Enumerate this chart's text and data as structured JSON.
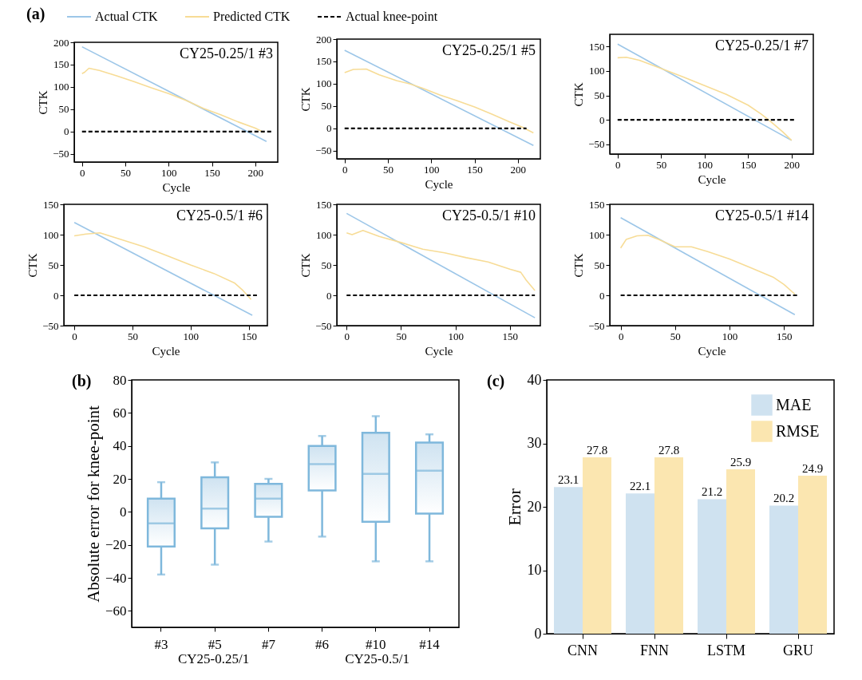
{
  "chart_data": [
    {
      "type": "line",
      "title": "CY25-0.25/1 #3",
      "xlabel": "Cycle",
      "ylabel": "CTK",
      "annotations": [
        "(a)"
      ],
      "legend": "top",
      "xlim": [
        -9,
        226
      ],
      "xticks": [
        0,
        50,
        100,
        150,
        200
      ],
      "ylim": [
        -68,
        200
      ],
      "yticks": [
        -50,
        0,
        50,
        100,
        150,
        200
      ],
      "series": [
        {
          "name": "Actual CTK",
          "color": "#9cc6e8",
          "x": [
            0,
            213
          ],
          "values": [
            190,
            -22
          ]
        },
        {
          "name": "Predicted CTK",
          "color": "#f7dc96",
          "x": [
            0,
            3,
            8,
            20,
            40,
            60,
            80,
            100,
            120,
            140,
            160,
            180,
            200,
            210
          ],
          "values": [
            130,
            133,
            142,
            137,
            125,
            112,
            98,
            85,
            70,
            52,
            38,
            22,
            8,
            -2
          ]
        },
        {
          "name": "Actual knee-point",
          "color": "#000000",
          "line_style": "dashed",
          "x": [
            0,
            220
          ],
          "values": [
            0,
            0
          ]
        }
      ]
    },
    {
      "type": "line",
      "title": "CY25-0.25/1 #5",
      "xlabel": "Cycle",
      "ylabel": "CTK",
      "xlim": [
        -9,
        226
      ],
      "xticks": [
        0,
        50,
        100,
        150,
        200
      ],
      "ylim": [
        -68,
        200
      ],
      "yticks": [
        -50,
        0,
        50,
        100,
        150,
        200
      ],
      "series": [
        {
          "color": "#9cc6e8",
          "x": [
            0,
            218
          ],
          "values": [
            175,
            -38
          ]
        },
        {
          "color": "#f7dc96",
          "x": [
            0,
            10,
            25,
            40,
            60,
            75,
            90,
            110,
            130,
            150,
            170,
            190,
            205,
            218
          ],
          "values": [
            125,
            132,
            133,
            120,
            107,
            100,
            90,
            75,
            62,
            48,
            32,
            15,
            3,
            -10
          ]
        },
        {
          "color": "#000000",
          "line_style": "dashed",
          "x": [
            0,
            210
          ],
          "values": [
            0,
            0
          ]
        }
      ]
    },
    {
      "type": "line",
      "title": "CY25-0.25/1 #7",
      "xlabel": "Cycle",
      "ylabel": "CTK",
      "xlim": [
        -9,
        225
      ],
      "xticks": [
        0,
        50,
        100,
        150,
        200
      ],
      "ylim": [
        -70,
        175
      ],
      "yticks": [
        -50,
        0,
        50,
        100,
        150
      ],
      "series": [
        {
          "color": "#9cc6e8",
          "x": [
            0,
            200
          ],
          "values": [
            155,
            -42
          ]
        },
        {
          "color": "#f7dc96",
          "x": [
            0,
            10,
            25,
            50,
            75,
            100,
            125,
            150,
            165,
            175,
            190,
            200
          ],
          "values": [
            127,
            128,
            122,
            105,
            88,
            70,
            52,
            30,
            12,
            -2,
            -25,
            -42
          ]
        },
        {
          "color": "#000000",
          "line_style": "dashed",
          "x": [
            0,
            205
          ],
          "values": [
            0,
            0
          ]
        }
      ]
    },
    {
      "type": "line",
      "title": "CY25-0.5/1 #6",
      "xlabel": "Cycle",
      "ylabel": "CTK",
      "xlim": [
        -9,
        166
      ],
      "xticks": [
        0,
        50,
        100,
        150
      ],
      "ylim": [
        -50,
        150
      ],
      "yticks": [
        -50,
        0,
        50,
        100,
        150
      ],
      "series": [
        {
          "color": "#9cc6e8",
          "x": [
            0,
            153
          ],
          "values": [
            120,
            -33
          ]
        },
        {
          "color": "#f7dc96",
          "x": [
            0,
            10,
            22,
            40,
            60,
            80,
            100,
            120,
            138,
            145,
            152
          ],
          "values": [
            98,
            101,
            103,
            92,
            80,
            65,
            50,
            36,
            20,
            8,
            -7
          ]
        },
        {
          "color": "#000000",
          "line_style": "dashed",
          "x": [
            0,
            157
          ],
          "values": [
            0,
            0
          ]
        }
      ]
    },
    {
      "type": "line",
      "title": "CY25-0.5/1 #10",
      "xlabel": "Cycle",
      "ylabel": "CTK",
      "xlim": [
        -9,
        178
      ],
      "xticks": [
        0,
        50,
        100,
        150
      ],
      "ylim": [
        -50,
        150
      ],
      "yticks": [
        -50,
        0,
        50,
        100,
        150
      ],
      "series": [
        {
          "color": "#9cc6e8",
          "x": [
            0,
            173
          ],
          "values": [
            135,
            -37
          ]
        },
        {
          "color": "#f7dc96",
          "x": [
            0,
            5,
            15,
            30,
            50,
            70,
            90,
            110,
            130,
            150,
            160,
            165,
            173
          ],
          "values": [
            103,
            100,
            107,
            97,
            87,
            76,
            70,
            62,
            55,
            43,
            38,
            25,
            8
          ]
        },
        {
          "color": "#000000",
          "line_style": "dashed",
          "x": [
            0,
            173
          ],
          "values": [
            0,
            0
          ]
        }
      ]
    },
    {
      "type": "line",
      "title": "CY25-0.5/1 #14",
      "xlabel": "Cycle",
      "ylabel": "CTK",
      "xlim": [
        -10,
        177
      ],
      "xticks": [
        0,
        50,
        100,
        150
      ],
      "ylim": [
        -50,
        150
      ],
      "yticks": [
        -50,
        0,
        50,
        100,
        150
      ],
      "series": [
        {
          "color": "#9cc6e8",
          "x": [
            0,
            160
          ],
          "values": [
            128,
            -32
          ]
        },
        {
          "color": "#f7dc96",
          "x": [
            0,
            5,
            15,
            25,
            35,
            50,
            65,
            80,
            100,
            120,
            140,
            150,
            160
          ],
          "values": [
            78,
            92,
            98,
            99,
            92,
            80,
            80,
            72,
            60,
            45,
            30,
            18,
            2
          ]
        },
        {
          "color": "#000000",
          "line_style": "dashed",
          "x": [
            0,
            163
          ],
          "values": [
            0,
            0
          ]
        }
      ]
    },
    {
      "type": "box",
      "ylabel": "Absolute error for knee-point",
      "color": "#7fb8dc",
      "categories": [
        "#3",
        "#5",
        "#7",
        "#6",
        "#10",
        "#14"
      ],
      "ylim": [
        -70,
        80
      ],
      "yticks": [
        -60,
        -40,
        -20,
        0,
        20,
        40,
        60,
        80
      ],
      "annotations": [
        "(b)",
        "CY25-0.25/1",
        "CY25-0.5/1"
      ],
      "boxes": [
        {
          "low": -38,
          "q1": -21,
          "median": -7,
          "q3": 8,
          "high": 18
        },
        {
          "low": -32,
          "q1": -10,
          "median": 2,
          "q3": 21,
          "high": 30
        },
        {
          "low": -18,
          "q1": -3,
          "median": 8,
          "q3": 17,
          "high": 20
        },
        {
          "low": -15,
          "q1": 13,
          "median": 29,
          "q3": 40,
          "high": 46
        },
        {
          "low": -30,
          "q1": -6,
          "median": 23,
          "q3": 48,
          "high": 58
        },
        {
          "low": -30,
          "q1": -1,
          "median": 25,
          "q3": 42,
          "high": 47
        }
      ]
    },
    {
      "type": "bar",
      "ylabel": "Error",
      "categories": [
        "CNN",
        "FNN",
        "LSTM",
        "GRU"
      ],
      "ylim": [
        0,
        40
      ],
      "yticks": [
        0,
        10,
        20,
        30,
        40
      ],
      "legend": "top right",
      "data_labels": true,
      "annotations": [
        "(c)"
      ],
      "series": [
        {
          "name": "MAE",
          "color": "#cfe2f0",
          "values": [
            23.1,
            22.1,
            21.2,
            20.2
          ]
        },
        {
          "name": "RMSE",
          "color": "#fbe6b0",
          "values": [
            27.8,
            27.8,
            25.9,
            24.9
          ]
        }
      ]
    }
  ]
}
